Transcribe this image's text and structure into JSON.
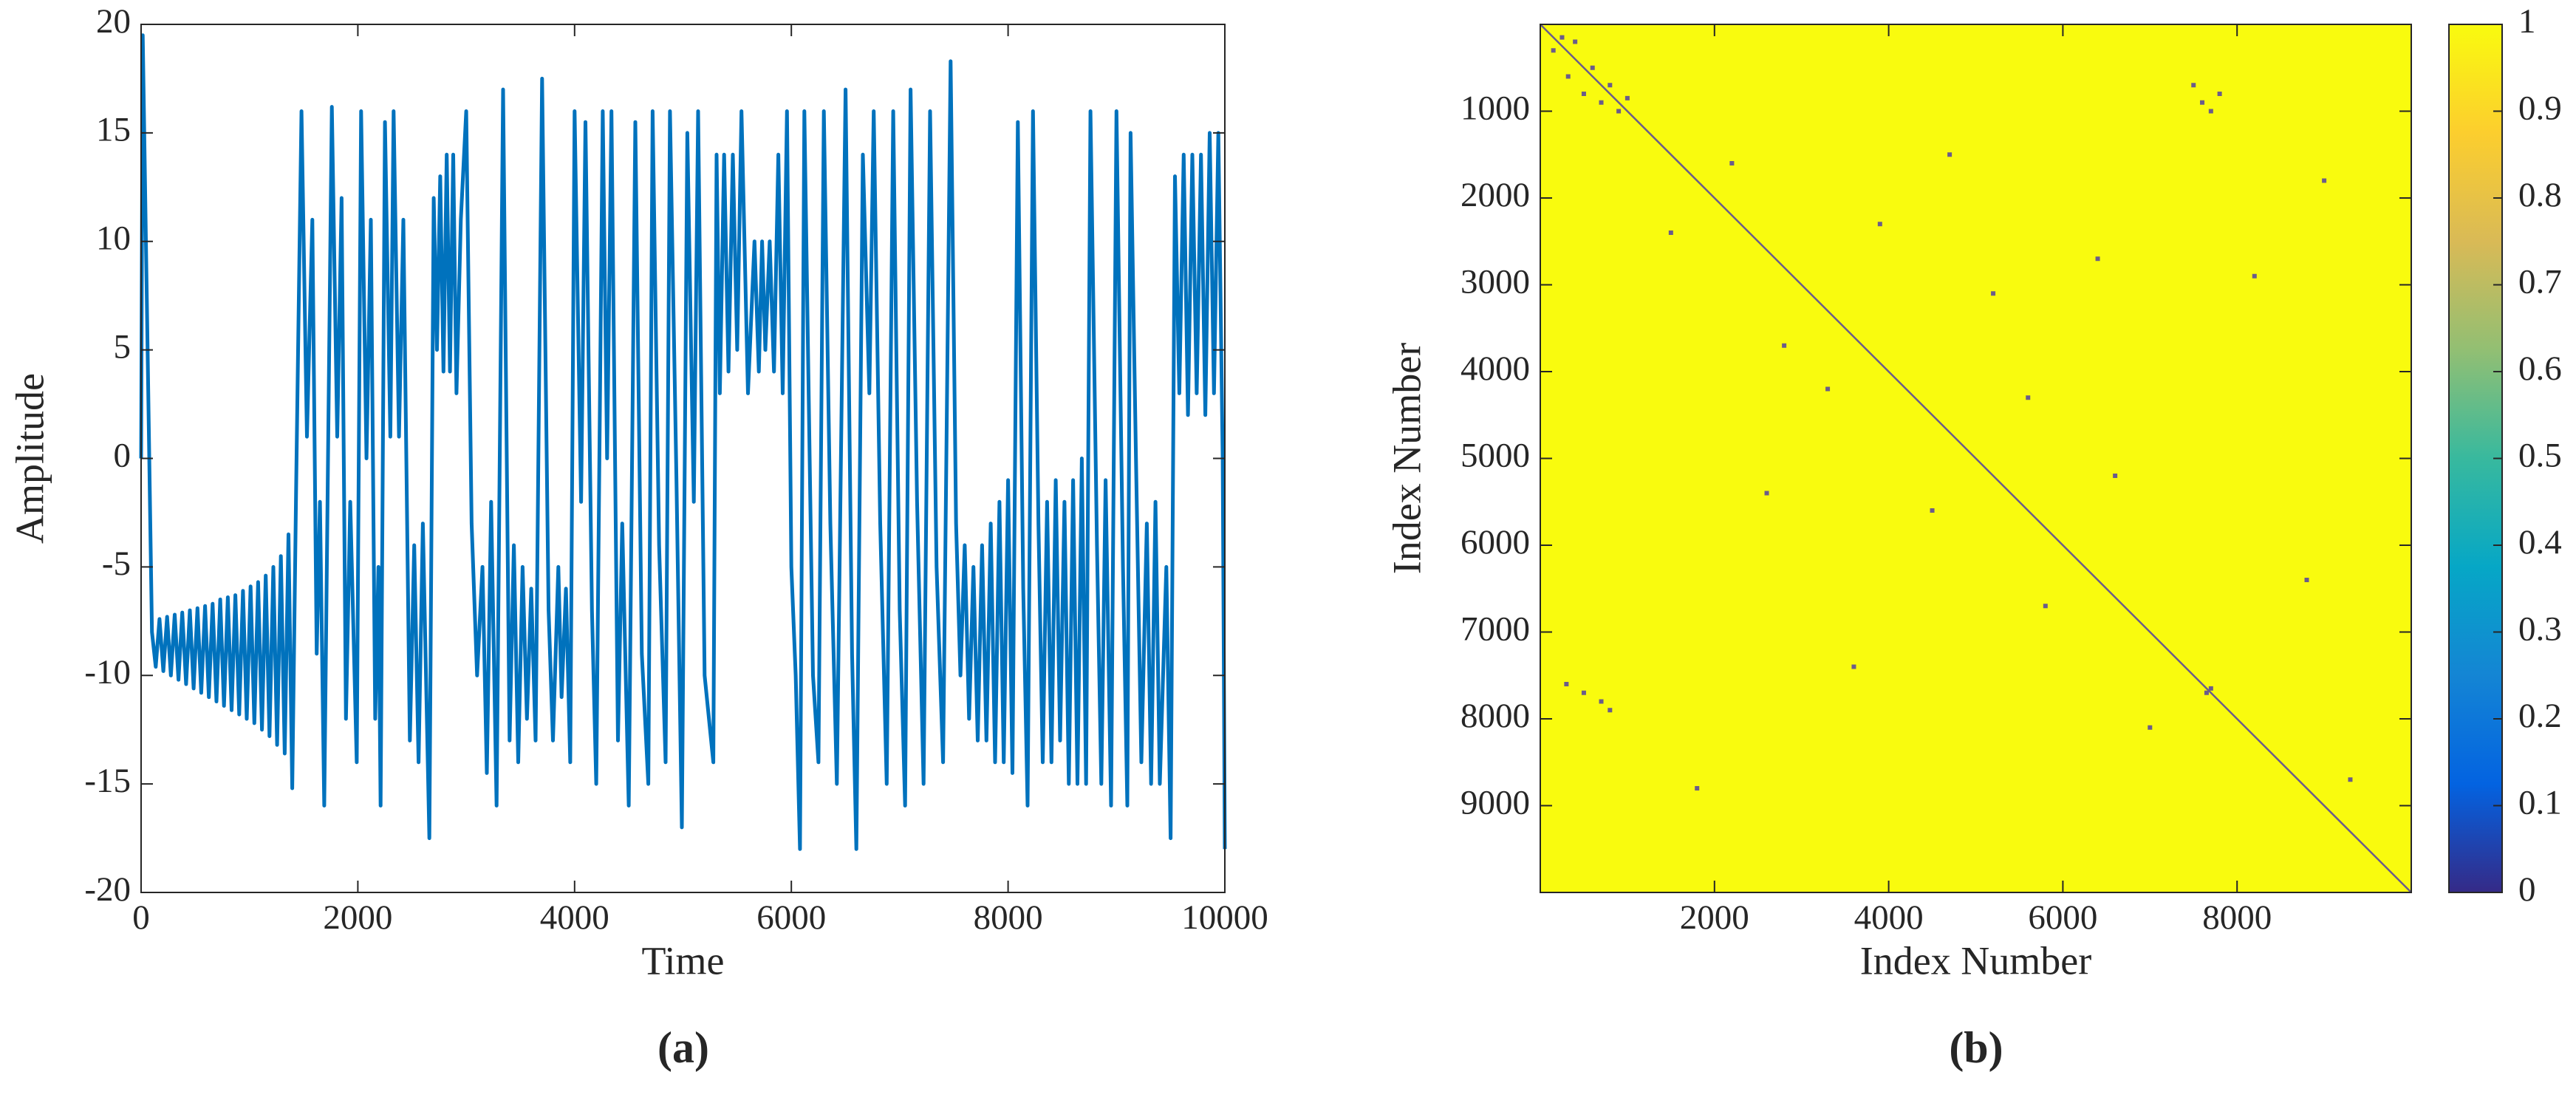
{
  "chart_data": [
    {
      "type": "line",
      "panel_label": "(a)",
      "xlabel": "Time",
      "ylabel": "Amplitude",
      "color": "#0072bd",
      "xlim": [
        0,
        10000
      ],
      "xticks": [
        0,
        2000,
        4000,
        6000,
        8000,
        10000
      ],
      "ylim": [
        -20,
        20
      ],
      "yticks": [
        -20,
        -15,
        -10,
        -5,
        0,
        5,
        10,
        15,
        20
      ],
      "x": [
        0,
        15,
        60,
        100,
        135,
        170,
        205,
        240,
        275,
        310,
        345,
        380,
        415,
        450,
        485,
        520,
        555,
        590,
        625,
        660,
        695,
        730,
        765,
        800,
        835,
        870,
        905,
        940,
        975,
        1010,
        1045,
        1080,
        1115,
        1150,
        1185,
        1220,
        1255,
        1290,
        1325,
        1360,
        1395,
        1430,
        1480,
        1530,
        1580,
        1620,
        1650,
        1690,
        1760,
        1810,
        1850,
        1890,
        1930,
        1990,
        2030,
        2080,
        2120,
        2160,
        2190,
        2210,
        2250,
        2300,
        2330,
        2380,
        2420,
        2480,
        2520,
        2560,
        2600,
        2660,
        2700,
        2730,
        2760,
        2790,
        2820,
        2850,
        2880,
        2910,
        2950,
        3000,
        3050,
        3100,
        3150,
        3190,
        3230,
        3280,
        3340,
        3400,
        3440,
        3480,
        3520,
        3560,
        3600,
        3640,
        3700,
        3760,
        3800,
        3850,
        3880,
        3920,
        3960,
        4000,
        4060,
        4100,
        4160,
        4200,
        4260,
        4300,
        4340,
        4400,
        4440,
        4500,
        4560,
        4620,
        4680,
        4720,
        4780,
        4840,
        4880,
        4940,
        4990,
        5040,
        5100,
        5140,
        5200,
        5280,
        5310,
        5340,
        5380,
        5420,
        5460,
        5500,
        5540,
        5600,
        5660,
        5700,
        5730,
        5760,
        5800,
        5840,
        5880,
        5920,
        5960,
        6000,
        6040,
        6080,
        6120,
        6200,
        6250,
        6300,
        6360,
        6420,
        6500,
        6560,
        6600,
        6660,
        6720,
        6760,
        6820,
        6880,
        6940,
        7000,
        7050,
        7100,
        7160,
        7220,
        7280,
        7340,
        7400,
        7470,
        7520,
        7560,
        7600,
        7640,
        7680,
        7720,
        7760,
        7800,
        7840,
        7880,
        7920,
        7960,
        8000,
        8040,
        8090,
        8140,
        8180,
        8230,
        8280,
        8320,
        8360,
        8400,
        8440,
        8480,
        8520,
        8560,
        8600,
        8640,
        8680,
        8720,
        8760,
        8820,
        8860,
        8900,
        8950,
        9000,
        9060,
        9100,
        9130,
        9180,
        9230,
        9280,
        9320,
        9360,
        9400,
        9460,
        9500,
        9540,
        9580,
        9620,
        9660,
        9700,
        9740,
        9780,
        9820,
        9860,
        9900,
        9940,
        9980,
        10000
      ],
      "values": [
        0,
        19.5,
        5,
        -8,
        -9.6,
        -7.4,
        -9.8,
        -7.3,
        -10.0,
        -7.2,
        -10.2,
        -7.1,
        -10.4,
        -7.0,
        -10.6,
        -6.9,
        -10.8,
        -6.8,
        -11.0,
        -6.7,
        -11.2,
        -6.5,
        -11.4,
        -6.4,
        -11.6,
        -6.3,
        -11.8,
        -6.1,
        -12.0,
        -5.9,
        -12.2,
        -5.7,
        -12.5,
        -5.4,
        -12.8,
        -5.0,
        -13.2,
        -4.5,
        -13.6,
        -3.5,
        -15.2,
        -1.5,
        16,
        1,
        11,
        -9,
        -2,
        -16,
        16.2,
        1,
        12,
        -12,
        -2,
        -14,
        16,
        0,
        11,
        -12,
        -5,
        -16,
        15.5,
        1,
        16,
        1,
        11,
        -13,
        -4,
        -14,
        -3,
        -17.5,
        12,
        5,
        13,
        4,
        14,
        4,
        14,
        3,
        11,
        16,
        -3,
        -10,
        -5,
        -14.5,
        -2,
        -16,
        17,
        -13,
        -4,
        -14,
        -5,
        -12,
        -6,
        -13,
        17.5,
        -7,
        -13,
        -5,
        -11,
        -6,
        -14,
        16,
        -2,
        15.5,
        -7,
        -15,
        16,
        0,
        16,
        -13,
        -3,
        -16,
        15.5,
        -9,
        -15,
        16,
        -4,
        -14,
        16,
        -1,
        -17,
        15,
        -2,
        16,
        -10,
        -14,
        14,
        3,
        14,
        4,
        14,
        5,
        16,
        3,
        10,
        4,
        10,
        5,
        10,
        4,
        14,
        3,
        16,
        -5,
        -10,
        -18,
        16,
        -10,
        -14,
        16,
        -3,
        -15,
        17,
        -9,
        -18,
        14,
        3,
        16,
        -3,
        -15,
        16,
        -7,
        -16,
        17,
        -2,
        -15,
        16,
        -5,
        -14,
        18.3,
        -3,
        -10,
        -4,
        -12,
        -5,
        -13,
        -4,
        -13,
        -3,
        -14,
        -2,
        -14,
        -1,
        -14.5,
        15.5,
        -6,
        -16,
        16,
        -3,
        -14,
        -2,
        -14,
        -1,
        -13,
        -2,
        -15,
        -1,
        -15,
        0,
        -15,
        16,
        -4,
        -15,
        -1,
        -16,
        16,
        -5,
        -16,
        15,
        0,
        -14,
        -3,
        -15,
        -2,
        -15,
        -5,
        -17.5,
        13,
        3,
        14,
        2,
        14,
        3,
        14,
        2,
        15,
        3,
        15,
        0,
        -18
      ]
    },
    {
      "type": "heatmap",
      "panel_label": "(b)",
      "xlabel": "Index Number",
      "ylabel": "Index Number",
      "xlim": [
        0,
        10000
      ],
      "xticks": [
        2000,
        4000,
        6000,
        8000
      ],
      "ylim": [
        10000,
        0
      ],
      "yticks": [
        1000,
        2000,
        3000,
        4000,
        5000,
        6000,
        7000,
        8000,
        9000
      ],
      "background_color": "#f9fb0e",
      "point_color": "#6b5c8a",
      "diagonal": true,
      "points": {
        "x": [
          150,
          250,
          320,
          400,
          500,
          600,
          700,
          800,
          900,
          1000,
          7500,
          7600,
          7700,
          7800,
          300,
          500,
          700,
          800,
          1500,
          2200,
          2800,
          3300,
          3900,
          4500,
          5200,
          5800,
          6400,
          7000,
          8200,
          8800,
          9300,
          2600,
          3600,
          4700,
          5600,
          6600,
          7700,
          7650,
          1800,
          9000
        ],
        "y": [
          300,
          150,
          600,
          200,
          800,
          500,
          900,
          700,
          1000,
          850,
          700,
          900,
          1000,
          800,
          7600,
          7700,
          7800,
          7900,
          2400,
          1600,
          3700,
          4200,
          2300,
          5600,
          3100,
          6700,
          2700,
          8100,
          2900,
          6400,
          8700,
          5400,
          7400,
          1500,
          4300,
          5200,
          7650,
          7700,
          8800,
          1800
        ]
      },
      "clim": [
        0,
        1
      ],
      "cticks": [
        0,
        0.1,
        0.2,
        0.3,
        0.4,
        0.5,
        0.6,
        0.7,
        0.8,
        0.9,
        1
      ],
      "colormap": [
        "#352a87",
        "#0363e1",
        "#1485d4",
        "#06a7c6",
        "#38b99e",
        "#92bf73",
        "#d9ba56",
        "#fcce2e",
        "#f9fb0e"
      ]
    }
  ]
}
